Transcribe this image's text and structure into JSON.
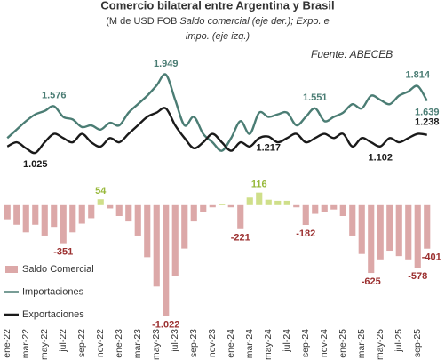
{
  "chart_data": {
    "type": "combo",
    "title": "Comercio bilateral entre Argentina y Brasil",
    "subtitle": [
      "(M de USD FOB ",
      "Saldo comercial (eje der.); Expo. e",
      "impo. (eje izq.)"
    ],
    "source": "Fuente: ABECEB",
    "categories": [
      "ene-22",
      null,
      "mar-22",
      null,
      "may-22",
      null,
      "jul-22",
      null,
      "sep-22",
      null,
      "nov-22",
      null,
      "ene-23",
      null,
      "mar-23",
      null,
      "may-23",
      null,
      "jul-23",
      null,
      "sep-23",
      null,
      "nov-23",
      null,
      "ene-24",
      null,
      "mar-24",
      null,
      "may-24",
      null,
      "jul-24",
      null,
      "sep-24",
      null,
      "nov-24",
      null,
      "ene-25",
      null,
      "mar-25",
      null,
      "may-25",
      null,
      "jul-25",
      null,
      "sep-25",
      null
    ],
    "ylim": [
      -1000,
      2200
    ],
    "y2lim": [
      -1100,
      1400
    ],
    "legend": "lower left",
    "series": [
      {
        "name": "Saldo Comercial",
        "type": "bar",
        "axis": "y2",
        "color": "#dca8a8",
        "positive_color": "#cfdf8a",
        "label_color": "#9b2f2f",
        "positive_label_color": "#97b83a",
        "values": [
          -130,
          -180,
          -250,
          -180,
          -280,
          -200,
          -351,
          -250,
          -170,
          -120,
          54,
          -30,
          -100,
          -150,
          -280,
          -480,
          -750,
          -1022,
          -650,
          -400,
          -150,
          -60,
          -20,
          10,
          -20,
          -221,
          70,
          116,
          50,
          40,
          40,
          -20,
          -182,
          -80,
          -60,
          -40,
          -100,
          -280,
          -450,
          -625,
          -500,
          -420,
          -470,
          -500,
          -578,
          -401
        ],
        "value_labels": [
          null,
          null,
          null,
          null,
          null,
          null,
          "-351",
          null,
          null,
          null,
          "54",
          null,
          null,
          null,
          null,
          null,
          null,
          "-1.022",
          null,
          null,
          null,
          null,
          null,
          null,
          null,
          "-221",
          null,
          "116",
          null,
          null,
          null,
          null,
          "-182",
          null,
          null,
          null,
          null,
          null,
          null,
          "-625",
          null,
          null,
          null,
          null,
          "-578",
          "-401"
        ]
      },
      {
        "name": "Importaciones",
        "type": "line",
        "color": "#4b7d74",
        "values": [
          1200,
          1300,
          1400,
          1480,
          1520,
          1576,
          1450,
          1420,
          1330,
          1350,
          1300,
          1380,
          1350,
          1500,
          1600,
          1700,
          1820,
          1949,
          1650,
          1350,
          1450,
          1250,
          1150,
          1050,
          1200,
          1400,
          1250,
          1500,
          1450,
          1480,
          1500,
          1350,
          1450,
          1551,
          1400,
          1450,
          1500,
          1600,
          1550,
          1700,
          1650,
          1600,
          1700,
          1750,
          1814,
          1639
        ],
        "value_labels": [
          null,
          null,
          null,
          null,
          null,
          "1.576",
          null,
          null,
          null,
          null,
          null,
          null,
          null,
          null,
          null,
          null,
          null,
          "1.949",
          null,
          null,
          null,
          null,
          null,
          null,
          null,
          null,
          null,
          null,
          null,
          null,
          null,
          null,
          null,
          "1.551",
          null,
          null,
          null,
          null,
          null,
          null,
          null,
          null,
          null,
          null,
          "1.814",
          "1.639"
        ]
      },
      {
        "name": "Exportaciones",
        "type": "line",
        "color": "#1a1a1a",
        "values": [
          1100,
          1150,
          1080,
          1025,
          1150,
          1250,
          1200,
          1150,
          1250,
          1150,
          1100,
          1200,
          1150,
          1250,
          1350,
          1450,
          1500,
          1550,
          1350,
          1200,
          1080,
          1150,
          1250,
          1150,
          1050,
          1150,
          1100,
          1200,
          1217,
          1150,
          1200,
          1250,
          1150,
          1200,
          1250,
          1200,
          1250,
          1100,
          1200,
          1150,
          1102,
          1200,
          1150,
          1200,
          1250,
          1238
        ],
        "value_labels": [
          null,
          null,
          null,
          "1.025",
          null,
          null,
          null,
          null,
          null,
          null,
          null,
          null,
          null,
          null,
          null,
          null,
          null,
          null,
          null,
          null,
          null,
          null,
          null,
          null,
          null,
          null,
          null,
          null,
          "1.217",
          null,
          null,
          null,
          null,
          null,
          null,
          null,
          null,
          null,
          null,
          null,
          "1.102",
          null,
          null,
          null,
          null,
          "1.238"
        ]
      }
    ]
  }
}
